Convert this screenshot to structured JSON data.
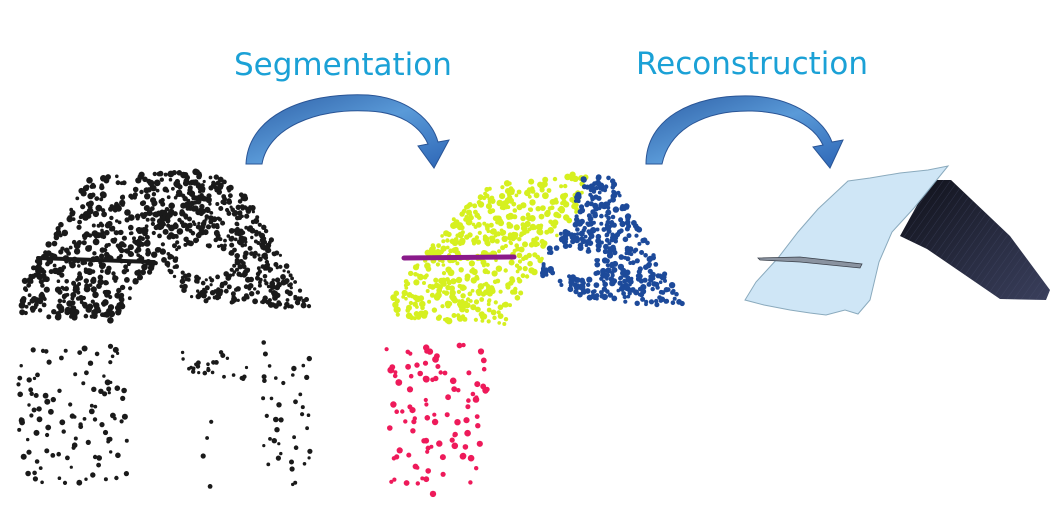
{
  "labels": {
    "segmentation": "Segmentation",
    "reconstruction": "Reconstruction"
  },
  "colors": {
    "label_text": "#1ba1d6",
    "raw_points": "#1a1a1a",
    "segment_plane_left": "#d6f020",
    "segment_plane_right": "#1d4a9a",
    "segment_line": "#8a1a8a",
    "segment_vertical": "#ee1a5a",
    "mesh_light_plane": "#cfe6f6",
    "mesh_dark_plane": "#23263a",
    "arrow_fill": "#3f80c8"
  }
}
